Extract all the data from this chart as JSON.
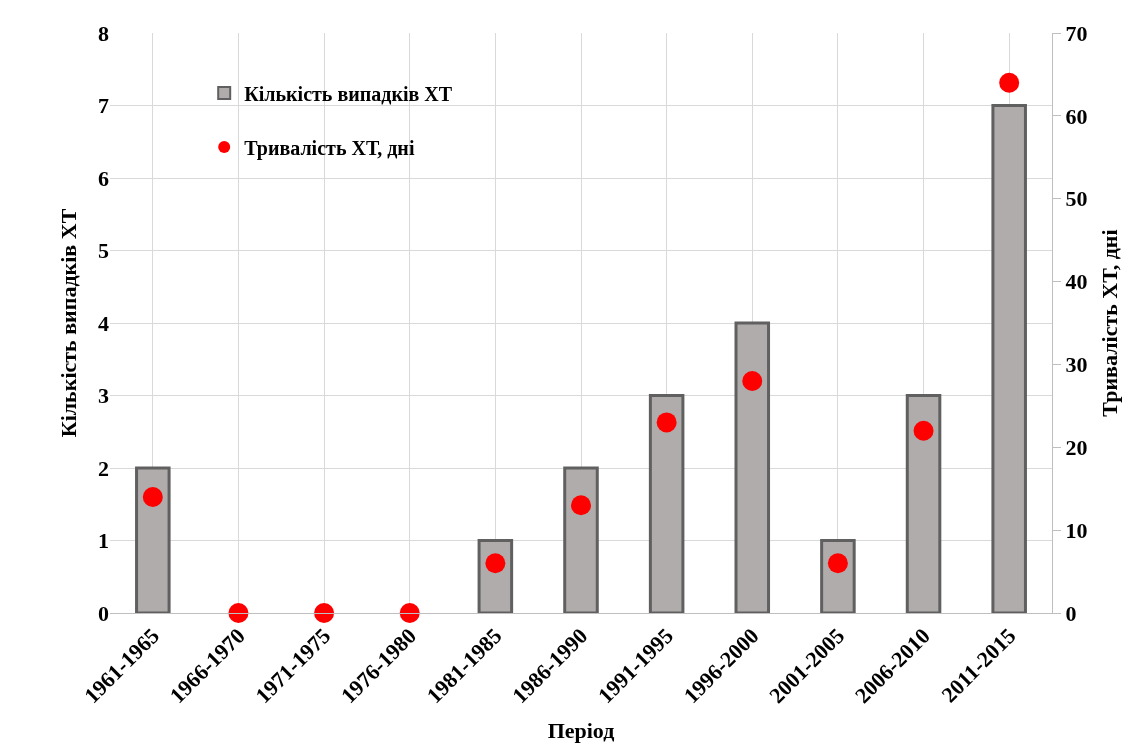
{
  "chart_data": {
    "type": "bar",
    "categories": [
      "1961-1965",
      "1966-1970",
      "1971-1975",
      "1976-1980",
      "1981-1985",
      "1986-1990",
      "1991-1995",
      "1996-2000",
      "2001-2005",
      "2006-2010",
      "2011-2015"
    ],
    "series": [
      {
        "name": "Кількість випадків ХТ",
        "color": "#b0acab",
        "values": [
          2,
          0,
          0,
          0,
          1,
          2,
          3,
          4,
          1,
          3,
          7
        ]
      },
      {
        "name": "Тривалість ХТ, дні",
        "type": "scatter",
        "axis": "y2",
        "color": "#ff0000",
        "values": [
          14,
          0,
          0,
          0,
          6,
          13,
          23,
          28,
          6,
          22,
          64
        ]
      }
    ],
    "xlabel": "Період",
    "ylabel": "Кількість випадків ХТ",
    "y2label": "Тривалість ХТ, дні",
    "ylim": [
      0,
      8
    ],
    "yticks": [
      0,
      1,
      2,
      3,
      4,
      5,
      6,
      7,
      8
    ],
    "y2lim": [
      0,
      70
    ],
    "y2ticks": [
      0,
      10,
      20,
      30,
      40,
      50,
      60,
      70
    ],
    "grid": true,
    "legend": "top left",
    "marker": "circle"
  }
}
